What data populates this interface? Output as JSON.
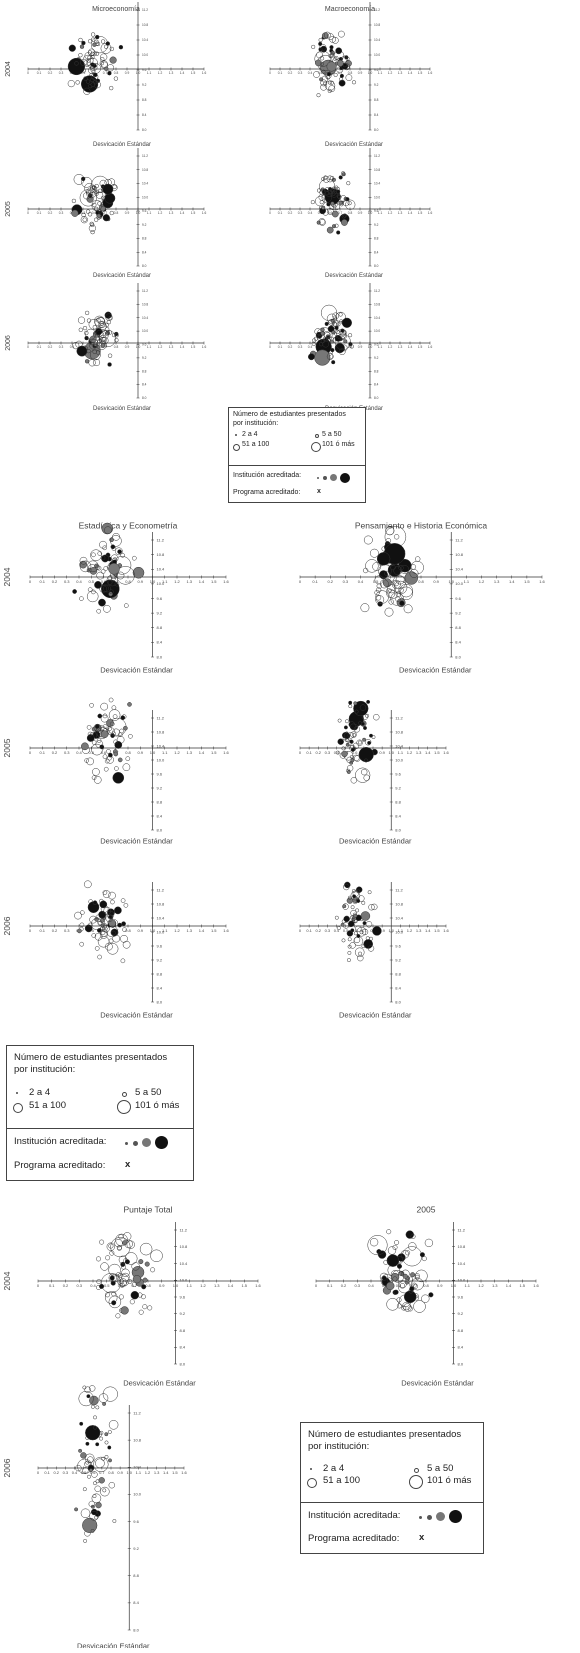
{
  "chart_data": [
    {
      "type": "scatter",
      "title": "Microeconomía",
      "year_label": "2004",
      "xlabel": "Desvicación Estándar",
      "xticks": [
        "0",
        "0.1",
        "0.2",
        "0.3",
        "0.4",
        "0.5",
        "0.6",
        "0.7",
        "0.8",
        "0.9",
        "1.0",
        "1.1",
        "1.2",
        "1.3",
        "1.4",
        "1.5",
        "1.6"
      ],
      "yticks": [
        "11.2",
        "10.8",
        "10.4",
        "10.0",
        "9.6",
        "9.2",
        "8.8",
        "8.4",
        "8.0"
      ]
    },
    {
      "type": "scatter",
      "title": "Macroeconomía",
      "year_label": "",
      "xlabel": "Desvicación Estándar",
      "xticks": [
        "0",
        "0.1",
        "0.2",
        "0.3",
        "0.4",
        "0.5",
        "0.6",
        "0.7",
        "0.8",
        "0.9",
        "1.0",
        "1.1",
        "1.2",
        "1.3",
        "1.4",
        "1.5",
        "1.6"
      ],
      "yticks": [
        "11.2",
        "10.8",
        "10.4",
        "10.0",
        "9.6",
        "9.2",
        "8.8",
        "8.4",
        "8.0"
      ]
    },
    {
      "type": "scatter",
      "title": "",
      "year_label": "2005",
      "xlabel": "Desvicación Estándar",
      "xticks": [
        "0",
        "0.1",
        "0.2",
        "0.3",
        "0.4",
        "0.5",
        "0.6",
        "0.7",
        "0.8",
        "0.9",
        "1.0",
        "1.1",
        "1.2",
        "1.3",
        "1.4",
        "1.5",
        "1.6"
      ],
      "yticks": [
        "11.2",
        "10.8",
        "10.4",
        "10.0",
        "9.6",
        "9.2",
        "8.8",
        "8.4",
        "8.0"
      ]
    },
    {
      "type": "scatter",
      "title": "",
      "year_label": "",
      "xlabel": "Desvicación Estándar",
      "xticks": [
        "0",
        "0.1",
        "0.2",
        "0.3",
        "0.4",
        "0.5",
        "0.6",
        "0.7",
        "0.8",
        "0.9",
        "1.0",
        "1.1",
        "1.2",
        "1.3",
        "1.4",
        "1.5",
        "1.6"
      ],
      "yticks": [
        "11.2",
        "10.8",
        "10.4",
        "10.0",
        "9.6",
        "9.2",
        "8.8",
        "8.4",
        "8.0"
      ]
    },
    {
      "type": "scatter",
      "title": "",
      "year_label": "2006",
      "xlabel": "Desvicación Estándar",
      "xticks": [
        "0",
        "0.1",
        "0.2",
        "0.3",
        "0.4",
        "0.5",
        "0.6",
        "0.7",
        "0.8",
        "0.9",
        "1.0",
        "1.1",
        "1.2",
        "1.3",
        "1.4",
        "1.5",
        "1.6"
      ],
      "yticks": [
        "11.2",
        "10.8",
        "10.4",
        "10.0",
        "9.6",
        "9.2",
        "8.8",
        "8.4",
        "8.0"
      ]
    },
    {
      "type": "scatter",
      "title": "",
      "year_label": "",
      "xlabel": "Desvicación Estándar",
      "xticks": [
        "0",
        "0.1",
        "0.2",
        "0.3",
        "0.4",
        "0.5",
        "0.6",
        "0.7",
        "0.8",
        "0.9",
        "1.0",
        "1.1",
        "1.2",
        "1.3",
        "1.4",
        "1.5",
        "1.6"
      ],
      "yticks": [
        "11.2",
        "10.8",
        "10.4",
        "10.0",
        "9.6",
        "9.2",
        "8.8",
        "8.4",
        "8.0"
      ]
    },
    {
      "type": "scatter",
      "title": "Estadística y Econometría",
      "year_label": "2004",
      "xlabel": "Desvicación Estándar",
      "xticks": [
        "0",
        "0.1",
        "0.2",
        "0.3",
        "0.4",
        "0.5",
        "0.6",
        "0.7",
        "0.8",
        "0.9",
        "1.0",
        "1.1",
        "1.2",
        "1.3",
        "1.4",
        "1.5",
        "1.6"
      ],
      "yticks": [
        "11.2",
        "10.8",
        "10.4",
        "10.0",
        "9.6",
        "9.2",
        "8.8",
        "8.4",
        "8.0"
      ]
    },
    {
      "type": "scatter",
      "title": "Pensamiento e Historia Económica",
      "year_label": "",
      "xlabel": "Desvicación Estándar",
      "xticks": [
        "0",
        "0.1",
        "0.2",
        "0.3",
        "0.4",
        "0.5",
        "0.6",
        "0.7",
        "0.8",
        "0.9",
        "1.0",
        "1.1",
        "1.2",
        "1.3",
        "1.4",
        "1.5",
        "1.6"
      ],
      "yticks": [
        "11.2",
        "10.8",
        "10.4",
        "10.0",
        "9.6",
        "9.2",
        "8.8",
        "8.4",
        "8.0"
      ]
    },
    {
      "type": "scatter",
      "title": "",
      "year_label": "2005",
      "xlabel": "Desvicación Estándar",
      "xticks": [
        "0",
        "0.1",
        "0.2",
        "0.3",
        "0.4",
        "0.5",
        "0.6",
        "0.7",
        "0.8",
        "0.9",
        "1.0",
        "1.1",
        "1.2",
        "1.3",
        "1.4",
        "1.5",
        "1.6"
      ],
      "yticks": [
        "11.2",
        "10.8",
        "10.4",
        "10.0",
        "9.6",
        "9.2",
        "8.8",
        "8.4",
        "8.0"
      ]
    },
    {
      "type": "scatter",
      "title": "",
      "year_label": "",
      "xlabel": "Desvicación Estándar",
      "xticks": [
        "0",
        "0.1",
        "0.2",
        "0.3",
        "0.4",
        "0.5",
        "0.6",
        "0.7",
        "0.8",
        "0.9",
        "1.0",
        "1.1",
        "1.2",
        "1.3",
        "1.4",
        "1.5",
        "1.6"
      ],
      "yticks": [
        "11.2",
        "10.8",
        "10.4",
        "10.0",
        "9.6",
        "9.2",
        "8.8",
        "8.4",
        "8.0"
      ]
    },
    {
      "type": "scatter",
      "title": "",
      "year_label": "2006",
      "xlabel": "Desvicación Estándar",
      "xticks": [
        "0",
        "0.1",
        "0.2",
        "0.3",
        "0.4",
        "0.5",
        "0.6",
        "0.7",
        "0.8",
        "0.9",
        "1.0",
        "1.1",
        "1.2",
        "1.3",
        "1.4",
        "1.5",
        "1.6"
      ],
      "yticks": [
        "11.2",
        "10.8",
        "10.4",
        "10.0",
        "9.6",
        "9.2",
        "8.8",
        "8.4",
        "8.0"
      ]
    },
    {
      "type": "scatter",
      "title": "",
      "year_label": "",
      "xlabel": "Desvicación Estándar",
      "xticks": [
        "0",
        "0.1",
        "0.2",
        "0.3",
        "0.4",
        "0.5",
        "0.6",
        "0.7",
        "0.8",
        "0.9",
        "1.0",
        "1.1",
        "1.2",
        "1.3",
        "1.4",
        "1.5",
        "1.6"
      ],
      "yticks": [
        "11.2",
        "10.8",
        "10.4",
        "10.0",
        "9.6",
        "9.2",
        "8.8",
        "8.4",
        "8.0"
      ]
    },
    {
      "type": "scatter",
      "title": "Puntaje Total",
      "year_label": "2004",
      "xlabel": "Desvicación Estándar",
      "xticks": [
        "0",
        "0.1",
        "0.2",
        "0.3",
        "0.4",
        "0.5",
        "0.6",
        "0.7",
        "0.8",
        "0.9",
        "1.0",
        "1.1",
        "1.2",
        "1.3",
        "1.4",
        "1.5",
        "1.6"
      ],
      "yticks": [
        "11.2",
        "10.8",
        "10.4",
        "10.0",
        "9.6",
        "9.2",
        "8.8",
        "8.4",
        "8.0"
      ]
    },
    {
      "type": "scatter",
      "title": "2005",
      "year_label": "",
      "xlabel": "Desvicación Estándar",
      "xticks": [
        "0",
        "0.1",
        "0.2",
        "0.3",
        "0.4",
        "0.5",
        "0.6",
        "0.7",
        "0.8",
        "0.9",
        "1.0",
        "1.1",
        "1.2",
        "1.3",
        "1.4",
        "1.5",
        "1.6"
      ],
      "yticks": [
        "11.2",
        "10.8",
        "10.4",
        "10.0",
        "9.6",
        "9.2",
        "8.8",
        "8.4",
        "8.0"
      ]
    },
    {
      "type": "scatter",
      "title": "",
      "year_label": "2006",
      "xlabel": "Desvicación Estándar",
      "xticks": [
        "0",
        "0.1",
        "0.2",
        "0.3",
        "0.4",
        "0.5",
        "0.6",
        "0.7",
        "0.8",
        "0.9",
        "1.0",
        "1.1",
        "1.2",
        "1.3",
        "1.4",
        "1.5",
        "1.6"
      ],
      "yticks": [
        "11.2",
        "10.8",
        "10.4",
        "10.0",
        "9.6",
        "9.2",
        "8.8",
        "8.4",
        "8.0"
      ]
    }
  ],
  "legend": {
    "heading": "Número de estudiantes presentados",
    "heading2": "por institución:",
    "sizes": [
      "2 a 4",
      "5 a 50",
      "51 a 100",
      "101 ó más"
    ],
    "accredited_institution": "Institución acreditada:",
    "accredited_program": "Programa acreditado:",
    "program_marker": "x"
  },
  "colors": {
    "axis": "#333333",
    "text": "#444444",
    "marker_gray": "#777777",
    "marker_black": "#111111"
  }
}
